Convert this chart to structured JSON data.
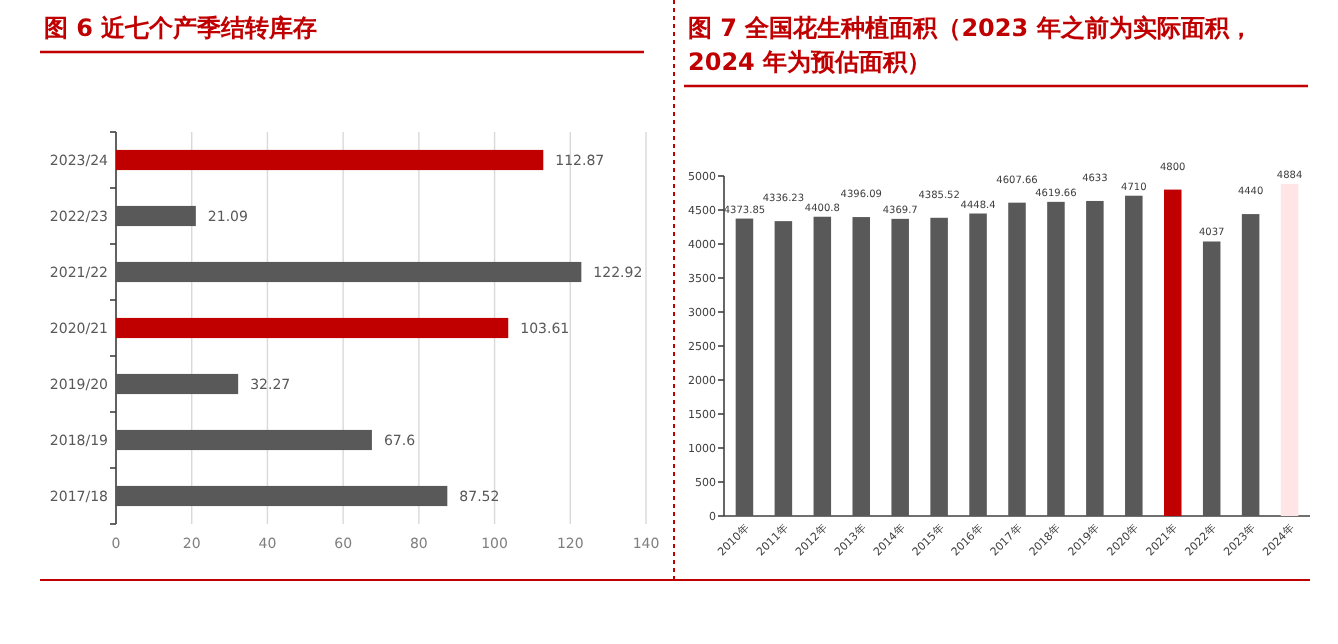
{
  "chart_data": [
    {
      "type": "bar",
      "title": "图 6  近七个产季结转库存",
      "orientation": "horizontal",
      "categories": [
        "2023/24",
        "2022/23",
        "2021/22",
        "2020/21",
        "2019/20",
        "2018/19",
        "2017/18"
      ],
      "values": [
        112.87,
        21.09,
        122.92,
        103.61,
        32.27,
        67.6,
        87.52
      ],
      "colors": [
        "#c00000",
        "#595959",
        "#595959",
        "#c00000",
        "#595959",
        "#595959",
        "#595959"
      ],
      "xlim": [
        0,
        140
      ],
      "xticks": [
        0,
        20,
        40,
        60,
        80,
        100,
        120,
        140
      ],
      "grid": "x",
      "data_labels": true
    },
    {
      "type": "bar",
      "title": "图 7 全国花生种植面积（2023 年之前为实际面积，2024 年为预估面积）",
      "categories": [
        "2010年",
        "2011年",
        "2012年",
        "2013年",
        "2014年",
        "2015年",
        "2016年",
        "2017年",
        "2018年",
        "2019年",
        "2020年",
        "2021年",
        "2022年",
        "2023年",
        "2024年"
      ],
      "values": [
        4373.85,
        4336.23,
        4400.8,
        4396.09,
        4369.7,
        4385.52,
        4448.4,
        4607.66,
        4619.66,
        4633,
        4710,
        4800,
        4037,
        4440,
        4884
      ],
      "colors": [
        "#595959",
        "#595959",
        "#595959",
        "#595959",
        "#595959",
        "#595959",
        "#595959",
        "#595959",
        "#595959",
        "#595959",
        "#595959",
        "#c00000",
        "#595959",
        "#595959",
        "#ffe5e5"
      ],
      "ylim": [
        0,
        5000
      ],
      "yticks": [
        0,
        500,
        1000,
        1500,
        2000,
        2500,
        3000,
        3500,
        4000,
        4500,
        5000
      ],
      "grid": false,
      "data_labels": true
    }
  ]
}
